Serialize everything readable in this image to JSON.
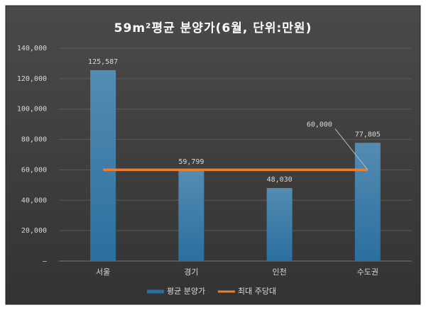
{
  "chart_data": {
    "type": "bar",
    "title": "59m²평균 분양가(6월, 단위:만원)",
    "categories": [
      "서울",
      "경기",
      "인천",
      "수도권"
    ],
    "series": [
      {
        "name": "평균 분양가",
        "type": "bar",
        "color": "#2a6f9f",
        "values": [
          125587,
          59799,
          48030,
          77805
        ],
        "value_labels": [
          "125,587",
          "59,799",
          "48,030",
          "77,805"
        ]
      },
      {
        "name": "최대 주당대",
        "type": "line",
        "color": "#ed7d31",
        "values": [
          60000,
          60000,
          60000,
          60000
        ],
        "value_labels": [
          null,
          null,
          null,
          "60,000"
        ]
      }
    ],
    "ylim": [
      0,
      140000
    ],
    "yticks": [
      {
        "value": 0,
        "label": "–"
      },
      {
        "value": 20000,
        "label": "20,000"
      },
      {
        "value": 40000,
        "label": "40,000"
      },
      {
        "value": 60000,
        "label": "60,000"
      },
      {
        "value": 80000,
        "label": "80,000"
      },
      {
        "value": 100000,
        "label": "100,000"
      },
      {
        "value": 120000,
        "label": "120,000"
      },
      {
        "value": 140000,
        "label": "140,000"
      }
    ],
    "grid": true,
    "legend": "bottom"
  }
}
